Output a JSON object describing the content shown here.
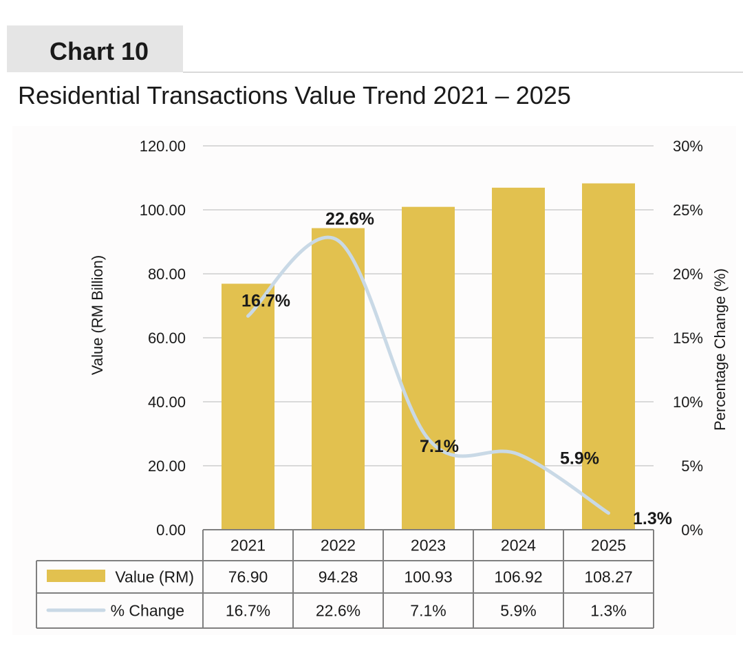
{
  "header": {
    "chart_tab_label": "Chart 10",
    "title": "Residential Transactions Value Trend 2021 – 2025"
  },
  "colors": {
    "bar": "#e2c14f",
    "line": "#c9d9e6",
    "grid": "#d9d9d9",
    "table_border": "#7f7f7f"
  },
  "chart_data": {
    "type": "bar",
    "title": "Residential Transactions Value Trend 2021 – 2025",
    "categories": [
      "2021",
      "2022",
      "2023",
      "2024",
      "2025"
    ],
    "series": [
      {
        "name": "Value (RM)",
        "type": "bar",
        "axis": "left",
        "values": [
          76.9,
          94.28,
          100.93,
          106.92,
          108.27
        ],
        "table_values": [
          "76.90",
          "94.28",
          "100.93",
          "106.92",
          "108.27"
        ]
      },
      {
        "name": "% Change",
        "type": "line",
        "axis": "right",
        "values": [
          16.7,
          22.6,
          7.1,
          5.9,
          1.3
        ],
        "labels": [
          "16.7%",
          "22.6%",
          "7.1%",
          "5.9%",
          "1.3%"
        ]
      }
    ],
    "ylabel": "Value (RM Billion)",
    "y2label": "Percentage Change (%)",
    "ylim": [
      0,
      120
    ],
    "y2lim": [
      0,
      30
    ],
    "y_ticks": [
      "0.00",
      "20.00",
      "40.00",
      "60.00",
      "80.00",
      "100.00",
      "120.00"
    ],
    "y2_ticks": [
      "0%",
      "5%",
      "10%",
      "15%",
      "20%",
      "25%",
      "30%"
    ],
    "grid": true,
    "legend": "data-table-below"
  }
}
